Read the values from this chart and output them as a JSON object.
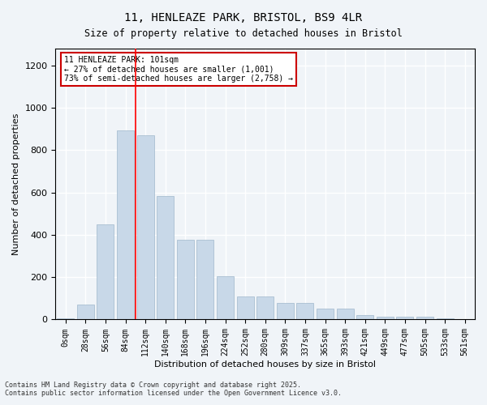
{
  "title_line1": "11, HENLEAZE PARK, BRISTOL, BS9 4LR",
  "title_line2": "Size of property relative to detached houses in Bristol",
  "xlabel": "Distribution of detached houses by size in Bristol",
  "ylabel": "Number of detached properties",
  "bar_color": "#c8d8e8",
  "bar_edge_color": "#a0b8cc",
  "categories": [
    "0sqm",
    "28sqm",
    "56sqm",
    "84sqm",
    "112sqm",
    "140sqm",
    "168sqm",
    "196sqm",
    "224sqm",
    "252sqm",
    "280sqm",
    "309sqm",
    "337sqm",
    "365sqm",
    "393sqm",
    "421sqm",
    "449sqm",
    "477sqm",
    "505sqm",
    "533sqm",
    "561sqm"
  ],
  "values": [
    5,
    70,
    450,
    895,
    870,
    585,
    378,
    378,
    205,
    110,
    110,
    80,
    80,
    50,
    50,
    22,
    12,
    12,
    12,
    5,
    2
  ],
  "ylim": [
    0,
    1280
  ],
  "yticks": [
    0,
    200,
    400,
    600,
    800,
    1000,
    1200
  ],
  "red_line_x": 3.5,
  "annotation_text": "11 HENLEAZE PARK: 101sqm\n← 27% of detached houses are smaller (1,001)\n73% of semi-detached houses are larger (2,758) →",
  "annotation_box_color": "#ffffff",
  "annotation_box_edge": "#cc0000",
  "footer_line1": "Contains HM Land Registry data © Crown copyright and database right 2025.",
  "footer_line2": "Contains public sector information licensed under the Open Government Licence v3.0.",
  "background_color": "#f0f4f8",
  "grid_color": "#ffffff",
  "fig_width": 6.0,
  "fig_height": 5.0
}
